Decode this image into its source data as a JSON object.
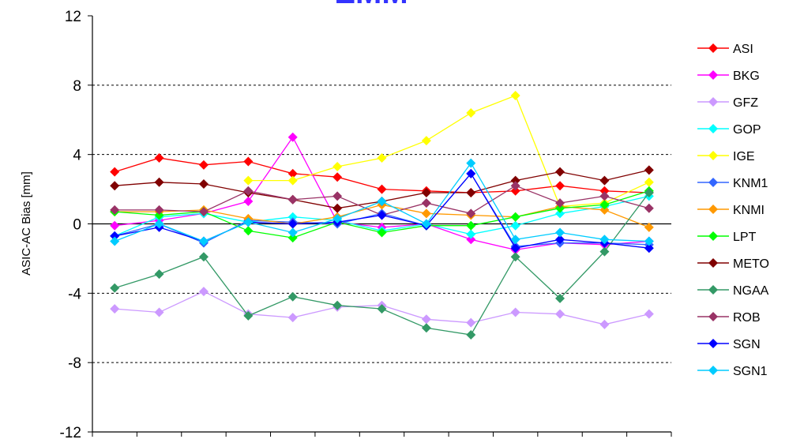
{
  "chart_data": {
    "type": "line",
    "title": "EMM",
    "xlabel": "",
    "ylabel": "ASIC-AC Bias [mm]",
    "ylim": [
      -12,
      12
    ],
    "yticks": [
      12,
      8,
      4,
      0,
      -4,
      -8,
      -12
    ],
    "x": [
      1,
      2,
      3,
      4,
      5,
      6,
      7,
      8,
      9,
      10,
      11,
      12,
      13
    ],
    "grid": "horizontal dashed at +-4 and +-8",
    "legend_position": "right",
    "series": [
      {
        "name": "ASI",
        "color": "#ff0000",
        "values": [
          3.0,
          3.8,
          3.4,
          3.6,
          2.9,
          2.7,
          2.0,
          1.9,
          1.8,
          1.9,
          2.2,
          1.9,
          1.8
        ]
      },
      {
        "name": "BKG",
        "color": "#ff00ff",
        "values": [
          -0.1,
          0.2,
          0.6,
          1.3,
          5.0,
          0.1,
          -0.2,
          0.0,
          -0.9,
          -1.5,
          -1.1,
          -1.2,
          -1.0
        ]
      },
      {
        "name": "GFZ",
        "color": "#cc99ff",
        "values": [
          -4.9,
          -5.1,
          -3.9,
          -5.2,
          -5.4,
          -4.8,
          -4.7,
          -5.5,
          -5.7,
          -5.1,
          -5.2,
          -5.8,
          -5.2
        ]
      },
      {
        "name": "GOP",
        "color": "#00ffff",
        "values": [
          -0.7,
          0.4,
          0.6,
          0.1,
          0.4,
          0.2,
          -0.4,
          0.0,
          -0.6,
          -0.1,
          0.6,
          1.0,
          1.6
        ]
      },
      {
        "name": "IGE",
        "color": "#ffff00",
        "values": [
          null,
          null,
          null,
          2.5,
          2.5,
          3.3,
          3.8,
          4.8,
          6.4,
          7.4,
          1.0,
          1.2,
          2.4
        ]
      },
      {
        "name": "KNM1",
        "color": "#3366ff",
        "values": [
          -0.7,
          0.0,
          -1.1,
          0.2,
          0.1,
          0.0,
          0.6,
          -0.1,
          2.9,
          -1.3,
          -1.1,
          -1.1,
          -1.2
        ]
      },
      {
        "name": "KNMI",
        "color": "#ff9900",
        "values": [
          0.7,
          0.7,
          0.8,
          0.3,
          0.0,
          0.4,
          1.1,
          0.6,
          0.5,
          0.4,
          1.0,
          0.8,
          -0.2
        ]
      },
      {
        "name": "LPT",
        "color": "#00ff00",
        "values": [
          0.7,
          0.5,
          0.7,
          -0.4,
          -0.8,
          0.1,
          -0.5,
          -0.1,
          -0.1,
          0.4,
          0.9,
          1.1,
          1.9
        ]
      },
      {
        "name": "METO",
        "color": "#800000",
        "values": [
          2.2,
          2.4,
          2.3,
          1.8,
          1.4,
          0.9,
          1.3,
          1.8,
          1.8,
          2.5,
          3.0,
          2.5,
          3.1
        ]
      },
      {
        "name": "NGAA",
        "color": "#339966",
        "values": [
          -3.7,
          -2.9,
          -1.9,
          -5.3,
          -4.2,
          -4.7,
          -4.9,
          -6.0,
          -6.4,
          -1.9,
          -4.3,
          -1.6,
          1.8
        ]
      },
      {
        "name": "ROB",
        "color": "#993366",
        "values": [
          0.8,
          0.8,
          0.7,
          1.9,
          1.4,
          1.6,
          0.5,
          1.2,
          0.6,
          2.2,
          1.2,
          1.6,
          0.9
        ]
      },
      {
        "name": "SGN",
        "color": "#0000ff",
        "values": [
          -0.7,
          -0.2,
          -1.0,
          0.1,
          0.0,
          0.1,
          0.5,
          -0.1,
          2.9,
          -1.4,
          -0.9,
          -1.1,
          -1.4
        ]
      },
      {
        "name": "SGN1",
        "color": "#00ccff",
        "values": [
          -1.0,
          0.0,
          -1.0,
          0.1,
          -0.5,
          0.3,
          1.3,
          0.0,
          3.5,
          -0.9,
          -0.5,
          -0.9,
          -1.0
        ]
      }
    ]
  }
}
